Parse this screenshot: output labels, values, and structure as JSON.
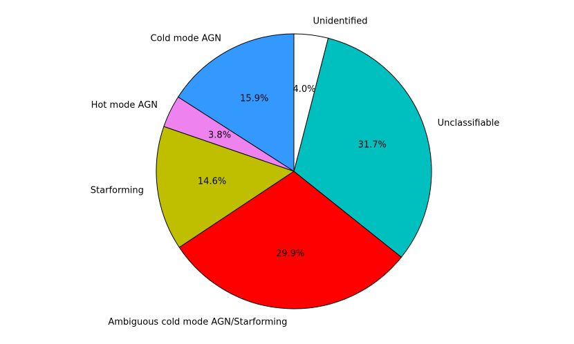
{
  "chart_data": {
    "type": "pie",
    "categories": [
      "Cold mode AGN",
      "Hot mode AGN",
      "Starforming",
      "Ambiguous cold mode AGN/Starforming",
      "Unclassifiable",
      "Unidentified"
    ],
    "values": [
      15.9,
      3.8,
      14.6,
      29.9,
      31.7,
      4.0
    ],
    "value_labels": [
      "15.9%",
      "3.8%",
      "14.6%",
      "29.9%",
      "31.7%",
      "4.0%"
    ],
    "colors": [
      "#3399ff",
      "#ee82ee",
      "#bfbf00",
      "#ff0000",
      "#00bfbf",
      "#ffffff"
    ]
  }
}
